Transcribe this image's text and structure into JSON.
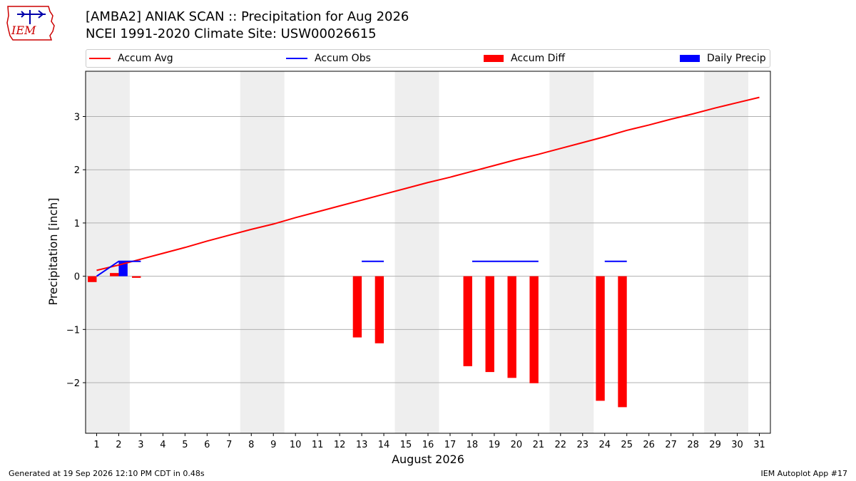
{
  "title_line1": "[AMBA2] ANIAK SCAN :: Precipitation for Aug 2026",
  "title_line2": "NCEI 1991-2020 Climate Site: USW00026615",
  "logo_text": "IEM",
  "footer_left": "Generated at 19 Sep 2026 12:10 PM CDT in 0.48s",
  "footer_right": "IEM Autoplot App #17",
  "colors": {
    "avg": "#ff0000",
    "obs": "#0000ff",
    "diff": "#ff0000",
    "daily": "#0000ff",
    "weekend_shade": "#eeeeee",
    "grid": "#b0b0b0"
  },
  "chart_data": {
    "type": "bar",
    "xlabel": "August 2026",
    "ylabel": "Precipitation [inch]",
    "xlim": [
      0.5,
      31.5
    ],
    "ylim": [
      -2.95,
      3.85
    ],
    "yticks": [
      -2,
      -1,
      0,
      1,
      2,
      3
    ],
    "ytick_labels": [
      "−2",
      "−1",
      "0",
      "1",
      "2",
      "3"
    ],
    "days": [
      1,
      2,
      3,
      4,
      5,
      6,
      7,
      8,
      9,
      10,
      11,
      12,
      13,
      14,
      15,
      16,
      17,
      18,
      19,
      20,
      21,
      22,
      23,
      24,
      25,
      26,
      27,
      28,
      29,
      30,
      31
    ],
    "grid": "horizontal",
    "legend_position": "top",
    "shaded_days": [
      [
        1,
        2
      ],
      [
        8,
        9
      ],
      [
        15,
        16
      ],
      [
        22,
        23
      ],
      [
        29,
        30
      ]
    ],
    "series": [
      {
        "name": "Accum Avg",
        "kind": "line",
        "x": [
          1,
          2,
          3,
          4,
          5,
          6,
          7,
          8,
          9,
          10,
          11,
          12,
          13,
          14,
          15,
          16,
          17,
          18,
          19,
          20,
          21,
          22,
          23,
          24,
          25,
          26,
          27,
          28,
          29,
          30,
          31
        ],
        "values": [
          0.11,
          0.21,
          0.32,
          0.43,
          0.54,
          0.66,
          0.77,
          0.88,
          0.98,
          1.1,
          1.21,
          1.32,
          1.43,
          1.54,
          1.65,
          1.76,
          1.86,
          1.97,
          2.08,
          2.19,
          2.29,
          2.4,
          2.51,
          2.62,
          2.74,
          2.84,
          2.95,
          3.05,
          3.16,
          3.26,
          3.36
        ]
      },
      {
        "name": "Accum Obs",
        "kind": "line_segments",
        "segments": [
          {
            "x": [
              1,
              2,
              3
            ],
            "values": [
              0.0,
              0.28,
              0.28
            ]
          },
          {
            "x": [
              13,
              14
            ],
            "values": [
              0.28,
              0.28
            ]
          },
          {
            "x": [
              18,
              19,
              20,
              21
            ],
            "values": [
              0.28,
              0.28,
              0.28,
              0.28
            ]
          },
          {
            "x": [
              24,
              25
            ],
            "values": [
              0.28,
              0.28
            ]
          }
        ]
      },
      {
        "name": "Accum Diff",
        "kind": "bar",
        "x": [
          1,
          2,
          3,
          13,
          14,
          18,
          19,
          20,
          21,
          24,
          25
        ],
        "values": [
          -0.11,
          0.06,
          -0.03,
          -1.15,
          -1.26,
          -1.69,
          -1.8,
          -1.91,
          -2.01,
          -2.34,
          -2.46
        ]
      },
      {
        "name": "Daily Precip",
        "kind": "bar",
        "x": [
          2
        ],
        "values": [
          0.28
        ]
      }
    ]
  }
}
